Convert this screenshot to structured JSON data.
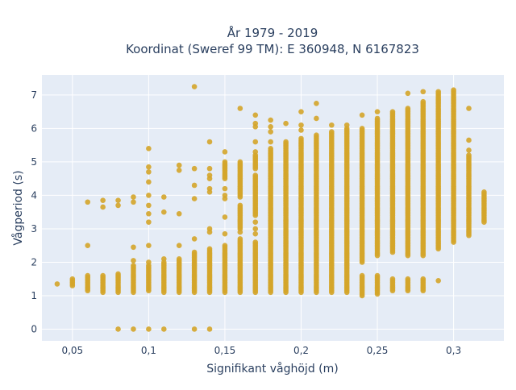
{
  "chart_data": {
    "type": "scatter",
    "title_line1": "År 1979 - 2019",
    "title_line2": "Koordinat (Sweref 99 TM): E 360948, N 6167823",
    "xlabel": "Signifikant våghöjd (m)",
    "ylabel": "Vågperiod (s)",
    "xlim": [
      0.03,
      0.333
    ],
    "ylim": [
      -0.35,
      7.6
    ],
    "x_ticks": [
      {
        "value": 0.05,
        "label": "0,05"
      },
      {
        "value": 0.1,
        "label": "0,1"
      },
      {
        "value": 0.15,
        "label": "0,15"
      },
      {
        "value": 0.2,
        "label": "0,2"
      },
      {
        "value": 0.25,
        "label": "0,25"
      },
      {
        "value": 0.3,
        "label": "0,3"
      }
    ],
    "y_ticks": [
      {
        "value": 0,
        "label": "0"
      },
      {
        "value": 1,
        "label": "1"
      },
      {
        "value": 2,
        "label": "2"
      },
      {
        "value": 3,
        "label": "3"
      },
      {
        "value": 4,
        "label": "4"
      },
      {
        "value": 5,
        "label": "5"
      },
      {
        "value": 6,
        "label": "6"
      },
      {
        "value": 7,
        "label": "7"
      }
    ],
    "grid": true,
    "colors": {
      "plot_bg": "#e5ecf6",
      "grid": "#ffffff",
      "marker": "#d4a52a"
    },
    "columns": [
      {
        "x": 0.04,
        "ranges": [],
        "points": [
          1.35
        ]
      },
      {
        "x": 0.05,
        "ranges": [
          [
            1.3,
            1.5
          ]
        ],
        "points": []
      },
      {
        "x": 0.06,
        "ranges": [
          [
            1.15,
            1.6
          ]
        ],
        "points": [
          2.5,
          3.8
        ]
      },
      {
        "x": 0.07,
        "ranges": [
          [
            1.1,
            1.6
          ]
        ],
        "points": [
          3.65,
          3.85
        ]
      },
      {
        "x": 0.08,
        "ranges": [
          [
            1.1,
            1.65
          ]
        ],
        "points": [
          0,
          3.7,
          3.85
        ]
      },
      {
        "x": 0.09,
        "ranges": [
          [
            1.1,
            1.9
          ]
        ],
        "points": [
          0,
          2.05,
          2.45,
          3.8,
          3.95
        ]
      },
      {
        "x": 0.1,
        "ranges": [
          [
            1.15,
            1.9
          ]
        ],
        "points": [
          0,
          2.0,
          2.5,
          3.2,
          3.45,
          3.7,
          4.0,
          4.4,
          4.7,
          4.85,
          5.4
        ]
      },
      {
        "x": 0.11,
        "ranges": [
          [
            1.1,
            2.0
          ]
        ],
        "points": [
          0,
          2.1,
          3.5,
          3.95
        ]
      },
      {
        "x": 0.12,
        "ranges": [
          [
            1.1,
            2.1
          ]
        ],
        "points": [
          2.5,
          3.45,
          4.75,
          4.9
        ]
      },
      {
        "x": 0.13,
        "ranges": [
          [
            1.1,
            2.3
          ]
        ],
        "points": [
          0,
          2.7,
          3.9,
          4.3,
          4.8,
          7.25
        ]
      },
      {
        "x": 0.14,
        "ranges": [
          [
            1.1,
            2.4
          ]
        ],
        "points": [
          0,
          2.9,
          3.0,
          4.1,
          4.2,
          4.5,
          4.6,
          4.8,
          5.6
        ]
      },
      {
        "x": 0.15,
        "ranges": [
          [
            1.1,
            2.5
          ],
          [
            4.5,
            5.0
          ]
        ],
        "points": [
          2.85,
          3.35,
          3.9,
          4.0,
          4.2,
          5.3
        ]
      },
      {
        "x": 0.16,
        "ranges": [
          [
            1.1,
            2.7
          ],
          [
            3.0,
            3.7
          ],
          [
            3.95,
            5.0
          ]
        ],
        "points": [
          2.9,
          6.6
        ]
      },
      {
        "x": 0.17,
        "ranges": [
          [
            1.1,
            2.6
          ],
          [
            3.4,
            4.6
          ],
          [
            4.8,
            5.2
          ]
        ],
        "points": [
          2.85,
          3.0,
          3.2,
          5.3,
          5.6,
          6.05,
          6.15,
          6.4
        ]
      },
      {
        "x": 0.18,
        "ranges": [
          [
            1.1,
            5.4
          ]
        ],
        "points": [
          5.6,
          5.9,
          6.05,
          6.25
        ]
      },
      {
        "x": 0.19,
        "ranges": [
          [
            1.1,
            5.6
          ]
        ],
        "points": [
          6.15
        ]
      },
      {
        "x": 0.2,
        "ranges": [
          [
            1.1,
            5.7
          ]
        ],
        "points": [
          5.95,
          6.1,
          6.5
        ]
      },
      {
        "x": 0.21,
        "ranges": [
          [
            1.1,
            5.8
          ]
        ],
        "points": [
          6.3,
          6.75
        ]
      },
      {
        "x": 0.22,
        "ranges": [
          [
            1.1,
            5.9
          ]
        ],
        "points": [
          6.1
        ]
      },
      {
        "x": 0.23,
        "ranges": [
          [
            1.1,
            6.0
          ]
        ],
        "points": [
          6.1
        ]
      },
      {
        "x": 0.24,
        "ranges": [
          [
            1.0,
            1.6
          ],
          [
            2.0,
            6.0
          ]
        ],
        "points": [
          6.4
        ]
      },
      {
        "x": 0.25,
        "ranges": [
          [
            1.05,
            1.6
          ],
          [
            2.2,
            6.3
          ]
        ],
        "points": [
          6.5
        ]
      },
      {
        "x": 0.26,
        "ranges": [
          [
            1.15,
            1.5
          ],
          [
            2.3,
            6.5
          ]
        ],
        "points": []
      },
      {
        "x": 0.27,
        "ranges": [
          [
            1.15,
            1.5
          ],
          [
            2.2,
            6.6
          ]
        ],
        "points": [
          7.05
        ]
      },
      {
        "x": 0.28,
        "ranges": [
          [
            1.15,
            1.5
          ],
          [
            2.2,
            6.8
          ]
        ],
        "points": [
          7.1
        ]
      },
      {
        "x": 0.29,
        "ranges": [
          [
            2.4,
            7.1
          ]
        ],
        "points": [
          1.45
        ]
      },
      {
        "x": 0.3,
        "ranges": [
          [
            2.6,
            7.15
          ]
        ],
        "points": []
      },
      {
        "x": 0.31,
        "ranges": [
          [
            2.8,
            5.2
          ]
        ],
        "points": [
          5.35,
          5.65,
          6.6
        ]
      },
      {
        "x": 0.32,
        "ranges": [
          [
            3.2,
            4.1
          ]
        ],
        "points": []
      }
    ]
  }
}
